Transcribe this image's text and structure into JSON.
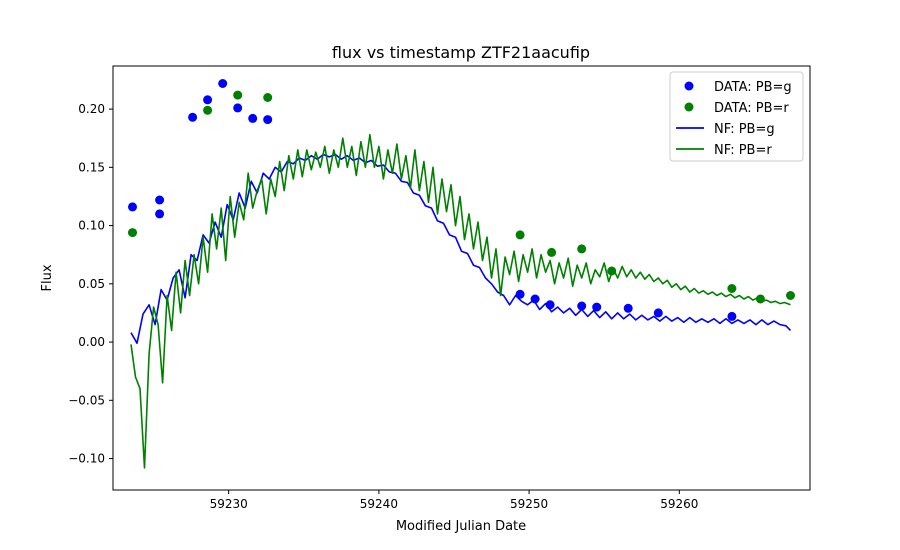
{
  "chart_data": {
    "type": "scatter",
    "title": "flux vs timestamp ZTF21aacufip",
    "xlabel": "Modified Julian Date",
    "ylabel": "Flux",
    "xlim": [
      59222.3,
      59268.7
    ],
    "ylim": [
      -0.127,
      0.237
    ],
    "xticks": [
      59230,
      59240,
      59250,
      59260
    ],
    "yticks": [
      -0.1,
      -0.05,
      0.0,
      0.05,
      0.1,
      0.15,
      0.2
    ],
    "xtick_labels": [
      "59230",
      "59240",
      "59250",
      "59260"
    ],
    "ytick_labels": [
      "−0.10",
      "−0.05",
      "0.00",
      "0.05",
      "0.10",
      "0.15",
      "0.20"
    ],
    "grid": false,
    "legend_position": "top-right",
    "scatter_series": [
      {
        "name": "DATA: PB=g",
        "color": "#0000ff",
        "points": [
          [
            59223.6,
            0.116
          ],
          [
            59225.4,
            0.122
          ],
          [
            59225.4,
            0.11
          ],
          [
            59227.6,
            0.193
          ],
          [
            59228.6,
            0.208
          ],
          [
            59229.6,
            0.222
          ],
          [
            59230.6,
            0.201
          ],
          [
            59231.6,
            0.192
          ],
          [
            59232.6,
            0.191
          ],
          [
            59249.4,
            0.041
          ],
          [
            59250.4,
            0.037
          ],
          [
            59251.4,
            0.032
          ],
          [
            59253.5,
            0.031
          ],
          [
            59254.5,
            0.03
          ],
          [
            59256.6,
            0.029
          ],
          [
            59258.6,
            0.025
          ],
          [
            59263.5,
            0.022
          ]
        ]
      },
      {
        "name": "DATA: PB=r",
        "color": "#008000",
        "points": [
          [
            59223.6,
            0.094
          ],
          [
            59228.6,
            0.199
          ],
          [
            59230.6,
            0.212
          ],
          [
            59232.6,
            0.21
          ],
          [
            59249.4,
            0.092
          ],
          [
            59251.5,
            0.077
          ],
          [
            59253.5,
            0.08
          ],
          [
            59255.5,
            0.061
          ],
          [
            59263.5,
            0.046
          ],
          [
            59265.4,
            0.037
          ],
          [
            59267.4,
            0.04
          ]
        ]
      }
    ],
    "line_series": [
      {
        "name": "NF: PB=g",
        "color": "#0000ff",
        "points": [
          [
            59223.5,
            0.008
          ],
          [
            59223.9,
            -0.001
          ],
          [
            59224.3,
            0.024
          ],
          [
            59224.7,
            0.032
          ],
          [
            59225.1,
            0.015
          ],
          [
            59225.5,
            0.045
          ],
          [
            59225.9,
            0.036
          ],
          [
            59226.3,
            0.055
          ],
          [
            59226.7,
            0.062
          ],
          [
            59227.1,
            0.038
          ],
          [
            59227.5,
            0.075
          ],
          [
            59227.9,
            0.07
          ],
          [
            59228.3,
            0.092
          ],
          [
            59228.7,
            0.085
          ],
          [
            59229.1,
            0.103
          ],
          [
            59229.5,
            0.09
          ],
          [
            59229.9,
            0.118
          ],
          [
            59230.3,
            0.105
          ],
          [
            59230.7,
            0.128
          ],
          [
            59231.1,
            0.115
          ],
          [
            59231.5,
            0.138
          ],
          [
            59231.9,
            0.128
          ],
          [
            59232.3,
            0.145
          ],
          [
            59232.7,
            0.14
          ],
          [
            59233.1,
            0.15
          ],
          [
            59233.5,
            0.146
          ],
          [
            59233.9,
            0.155
          ],
          [
            59234.3,
            0.153
          ],
          [
            59234.7,
            0.158
          ],
          [
            59235.1,
            0.156
          ],
          [
            59235.5,
            0.16
          ],
          [
            59235.9,
            0.157
          ],
          [
            59236.3,
            0.161
          ],
          [
            59236.7,
            0.159
          ],
          [
            59237.1,
            0.161
          ],
          [
            59237.5,
            0.157
          ],
          [
            59237.9,
            0.16
          ],
          [
            59238.3,
            0.156
          ],
          [
            59238.7,
            0.158
          ],
          [
            59239.1,
            0.154
          ],
          [
            59239.5,
            0.156
          ],
          [
            59239.9,
            0.151
          ],
          [
            59240.3,
            0.152
          ],
          [
            59240.7,
            0.146
          ],
          [
            59241.1,
            0.145
          ],
          [
            59241.5,
            0.138
          ],
          [
            59241.9,
            0.137
          ],
          [
            59242.3,
            0.128
          ],
          [
            59242.7,
            0.126
          ],
          [
            59243.1,
            0.117
          ],
          [
            59243.5,
            0.115
          ],
          [
            59243.9,
            0.104
          ],
          [
            59244.3,
            0.102
          ],
          [
            59244.7,
            0.092
          ],
          [
            59245.1,
            0.09
          ],
          [
            59245.5,
            0.078
          ],
          [
            59245.9,
            0.076
          ],
          [
            59246.3,
            0.066
          ],
          [
            59246.7,
            0.064
          ],
          [
            59247.1,
            0.055
          ],
          [
            59247.5,
            0.05
          ],
          [
            59247.9,
            0.043
          ],
          [
            59248.3,
            0.04
          ],
          [
            59248.7,
            0.032
          ],
          [
            59249.1,
            0.04
          ],
          [
            59249.5,
            0.035
          ],
          [
            59249.9,
            0.032
          ],
          [
            59250.3,
            0.036
          ],
          [
            59250.7,
            0.028
          ],
          [
            59251.1,
            0.033
          ],
          [
            59251.5,
            0.026
          ],
          [
            59251.9,
            0.03
          ],
          [
            59252.3,
            0.025
          ],
          [
            59252.7,
            0.029
          ],
          [
            59253.1,
            0.023
          ],
          [
            59253.5,
            0.028
          ],
          [
            59253.9,
            0.022
          ],
          [
            59254.3,
            0.027
          ],
          [
            59254.7,
            0.021
          ],
          [
            59255.1,
            0.026
          ],
          [
            59255.5,
            0.02
          ],
          [
            59255.9,
            0.025
          ],
          [
            59256.3,
            0.02
          ],
          [
            59256.7,
            0.024
          ],
          [
            59257.1,
            0.019
          ],
          [
            59257.5,
            0.023
          ],
          [
            59257.9,
            0.019
          ],
          [
            59258.3,
            0.022
          ],
          [
            59258.7,
            0.018
          ],
          [
            59259.1,
            0.022
          ],
          [
            59259.5,
            0.018
          ],
          [
            59259.9,
            0.021
          ],
          [
            59260.3,
            0.017
          ],
          [
            59260.7,
            0.021
          ],
          [
            59261.1,
            0.017
          ],
          [
            59261.5,
            0.02
          ],
          [
            59261.9,
            0.017
          ],
          [
            59262.3,
            0.02
          ],
          [
            59262.7,
            0.016
          ],
          [
            59263.1,
            0.02
          ],
          [
            59263.5,
            0.016
          ],
          [
            59263.9,
            0.019
          ],
          [
            59264.3,
            0.016
          ],
          [
            59264.7,
            0.019
          ],
          [
            59265.1,
            0.015
          ],
          [
            59265.5,
            0.019
          ],
          [
            59265.9,
            0.015
          ],
          [
            59266.3,
            0.018
          ],
          [
            59266.7,
            0.015
          ],
          [
            59267.1,
            0.014
          ],
          [
            59267.4,
            0.01
          ]
        ]
      },
      {
        "name": "NF: PB=r",
        "color": "#008000",
        "points": [
          [
            59223.5,
            -0.002
          ],
          [
            59223.8,
            -0.03
          ],
          [
            59224.1,
            -0.04
          ],
          [
            59224.4,
            -0.108
          ],
          [
            59224.7,
            -0.01
          ],
          [
            59225.0,
            0.03
          ],
          [
            59225.3,
            0.015
          ],
          [
            59225.6,
            -0.035
          ],
          [
            59225.9,
            0.04
          ],
          [
            59226.2,
            0.01
          ],
          [
            59226.5,
            0.06
          ],
          [
            59226.8,
            0.025
          ],
          [
            59227.1,
            0.07
          ],
          [
            59227.4,
            0.04
          ],
          [
            59227.7,
            0.075
          ],
          [
            59228.0,
            0.05
          ],
          [
            59228.3,
            0.09
          ],
          [
            59228.6,
            0.06
          ],
          [
            59228.9,
            0.11
          ],
          [
            59229.2,
            0.08
          ],
          [
            59229.5,
            0.115
          ],
          [
            59229.8,
            0.07
          ],
          [
            59230.1,
            0.125
          ],
          [
            59230.4,
            0.09
          ],
          [
            59230.7,
            0.12
          ],
          [
            59231.0,
            0.105
          ],
          [
            59231.3,
            0.145
          ],
          [
            59231.6,
            0.115
          ],
          [
            59231.9,
            0.13
          ],
          [
            59232.2,
            0.14
          ],
          [
            59232.5,
            0.11
          ],
          [
            59232.8,
            0.14
          ],
          [
            59233.1,
            0.125
          ],
          [
            59233.4,
            0.155
          ],
          [
            59233.7,
            0.13
          ],
          [
            59234.0,
            0.16
          ],
          [
            59234.3,
            0.14
          ],
          [
            59234.6,
            0.165
          ],
          [
            59234.9,
            0.142
          ],
          [
            59235.2,
            0.165
          ],
          [
            59235.5,
            0.148
          ],
          [
            59235.8,
            0.163
          ],
          [
            59236.1,
            0.15
          ],
          [
            59236.4,
            0.168
          ],
          [
            59236.7,
            0.145
          ],
          [
            59237.0,
            0.165
          ],
          [
            59237.3,
            0.15
          ],
          [
            59237.6,
            0.175
          ],
          [
            59237.9,
            0.15
          ],
          [
            59238.2,
            0.168
          ],
          [
            59238.5,
            0.143
          ],
          [
            59238.8,
            0.172
          ],
          [
            59239.1,
            0.15
          ],
          [
            59239.4,
            0.178
          ],
          [
            59239.7,
            0.15
          ],
          [
            59240.0,
            0.168
          ],
          [
            59240.3,
            0.14
          ],
          [
            59240.6,
            0.165
          ],
          [
            59240.9,
            0.145
          ],
          [
            59241.2,
            0.17
          ],
          [
            59241.5,
            0.14
          ],
          [
            59241.8,
            0.16
          ],
          [
            59242.1,
            0.132
          ],
          [
            59242.4,
            0.165
          ],
          [
            59242.7,
            0.13
          ],
          [
            59243.0,
            0.155
          ],
          [
            59243.3,
            0.12
          ],
          [
            59243.6,
            0.15
          ],
          [
            59243.9,
            0.11
          ],
          [
            59244.2,
            0.14
          ],
          [
            59244.5,
            0.112
          ],
          [
            59244.8,
            0.135
          ],
          [
            59245.1,
            0.1
          ],
          [
            59245.4,
            0.125
          ],
          [
            59245.7,
            0.088
          ],
          [
            59246.0,
            0.11
          ],
          [
            59246.3,
            0.08
          ],
          [
            59246.6,
            0.103
          ],
          [
            59246.9,
            0.07
          ],
          [
            59247.2,
            0.09
          ],
          [
            59247.5,
            0.055
          ],
          [
            59247.8,
            0.08
          ],
          [
            59248.1,
            0.04
          ],
          [
            59248.4,
            0.073
          ],
          [
            59248.7,
            0.058
          ],
          [
            59249.0,
            0.078
          ],
          [
            59249.3,
            0.052
          ],
          [
            59249.6,
            0.075
          ],
          [
            59249.9,
            0.06
          ],
          [
            59250.2,
            0.08
          ],
          [
            59250.5,
            0.055
          ],
          [
            59250.8,
            0.075
          ],
          [
            59251.1,
            0.06
          ],
          [
            59251.4,
            0.07
          ],
          [
            59251.7,
            0.05
          ],
          [
            59252.0,
            0.068
          ],
          [
            59252.3,
            0.055
          ],
          [
            59252.6,
            0.072
          ],
          [
            59252.9,
            0.048
          ],
          [
            59253.2,
            0.066
          ],
          [
            59253.5,
            0.055
          ],
          [
            59253.8,
            0.068
          ],
          [
            59254.1,
            0.05
          ],
          [
            59254.4,
            0.062
          ],
          [
            59254.7,
            0.056
          ],
          [
            59255.0,
            0.068
          ],
          [
            59255.3,
            0.052
          ],
          [
            59255.6,
            0.063
          ],
          [
            59255.9,
            0.055
          ],
          [
            59256.2,
            0.065
          ],
          [
            59256.5,
            0.056
          ],
          [
            59256.8,
            0.062
          ],
          [
            59257.1,
            0.055
          ],
          [
            59257.4,
            0.06
          ],
          [
            59257.7,
            0.054
          ],
          [
            59258.0,
            0.058
          ],
          [
            59258.3,
            0.052
          ],
          [
            59258.6,
            0.055
          ],
          [
            59258.9,
            0.05
          ],
          [
            59259.2,
            0.053
          ],
          [
            59259.5,
            0.047
          ],
          [
            59259.8,
            0.05
          ],
          [
            59260.1,
            0.045
          ],
          [
            59260.4,
            0.048
          ],
          [
            59260.7,
            0.043
          ],
          [
            59261.0,
            0.046
          ],
          [
            59261.3,
            0.042
          ],
          [
            59261.6,
            0.044
          ],
          [
            59261.9,
            0.041
          ],
          [
            59262.2,
            0.043
          ],
          [
            59262.5,
            0.04
          ],
          [
            59262.8,
            0.042
          ],
          [
            59263.1,
            0.039
          ],
          [
            59263.4,
            0.041
          ],
          [
            59263.7,
            0.038
          ],
          [
            59264.0,
            0.04
          ],
          [
            59264.3,
            0.037
          ],
          [
            59264.6,
            0.039
          ],
          [
            59264.9,
            0.036
          ],
          [
            59265.2,
            0.038
          ],
          [
            59265.5,
            0.035
          ],
          [
            59265.8,
            0.036
          ],
          [
            59266.1,
            0.034
          ],
          [
            59266.4,
            0.035
          ],
          [
            59266.7,
            0.033
          ],
          [
            59267.0,
            0.034
          ],
          [
            59267.4,
            0.032
          ]
        ]
      }
    ],
    "legend": [
      {
        "label": "DATA: PB=g",
        "kind": "marker",
        "color": "#0000ff"
      },
      {
        "label": "DATA: PB=r",
        "kind": "marker",
        "color": "#008000"
      },
      {
        "label": "NF: PB=g",
        "kind": "line",
        "color": "#0000ff"
      },
      {
        "label": "NF: PB=r",
        "kind": "line",
        "color": "#008000"
      }
    ]
  }
}
